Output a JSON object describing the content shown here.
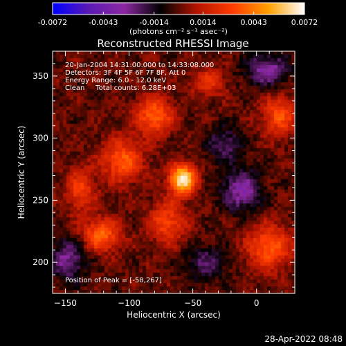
{
  "chart_data": {
    "type": "heatmap",
    "title": "Reconstructed RHESSI Image",
    "xlabel": "Heliocentric X (arcsec)",
    "ylabel": "Heliocentric Y (arcsec)",
    "xlim": [
      -160,
      30
    ],
    "ylim": [
      175,
      370
    ],
    "xticks": [
      -150,
      -100,
      -50,
      0
    ],
    "yticks": [
      200,
      250,
      300,
      350
    ],
    "colorbar": {
      "ticks": [
        "-0.0072",
        "-0.0043",
        "-0.0014",
        "0.0014",
        "0.0043",
        "0.0072"
      ],
      "range": [
        -0.0072,
        0.0072
      ],
      "unit_label": "(photons cm⁻² s⁻¹ asec⁻²)",
      "colors": [
        "#0000ff",
        "#5a1ab4",
        "#8c28a0",
        "#000000",
        "#b41400",
        "#ff3c00",
        "#ffa000",
        "#ffffff"
      ]
    },
    "annotations": [
      "20-Jan-2004 14:31:00.000 to 14:33:08.000",
      "Detectors: 3F 4F 5F 6F 7F 8F, Att 0",
      "Energy Range: 6.0 - 12.0 keV",
      "Clean     Total counts: 6.28E+03"
    ],
    "peak_label": "Position of Peak = [-58,267]",
    "peak": [
      -58,
      267
    ],
    "sources": [
      {
        "x": -58,
        "y": 267,
        "amp": 1.0,
        "sx": 7,
        "sy": 8
      },
      {
        "x": -80,
        "y": 318,
        "amp": 0.55,
        "sx": 10,
        "sy": 10
      },
      {
        "x": -105,
        "y": 282,
        "amp": 0.5,
        "sx": 11,
        "sy": 12
      },
      {
        "x": -122,
        "y": 222,
        "amp": 0.55,
        "sx": 10,
        "sy": 9
      },
      {
        "x": -70,
        "y": 232,
        "amp": 0.42,
        "sx": 10,
        "sy": 12
      },
      {
        "x": 10,
        "y": 212,
        "amp": 0.5,
        "sx": 12,
        "sy": 12
      },
      {
        "x": 18,
        "y": 318,
        "amp": 0.45,
        "sx": 9,
        "sy": 11
      },
      {
        "x": -138,
        "y": 258,
        "amp": 0.38,
        "sx": 8,
        "sy": 12
      },
      {
        "x": -38,
        "y": 345,
        "amp": 0.32,
        "sx": 9,
        "sy": 8
      },
      {
        "x": -12,
        "y": 258,
        "amp": -0.45,
        "sx": 11,
        "sy": 12
      },
      {
        "x": -148,
        "y": 202,
        "amp": -0.4,
        "sx": 10,
        "sy": 12
      },
      {
        "x": 8,
        "y": 355,
        "amp": -0.45,
        "sx": 12,
        "sy": 9
      },
      {
        "x": -25,
        "y": 295,
        "amp": -0.32,
        "sx": 10,
        "sy": 10
      },
      {
        "x": -40,
        "y": 200,
        "amp": -0.3,
        "sx": 12,
        "sy": 10
      }
    ]
  },
  "footer_timestamp": "28-Apr-2022 08:48"
}
